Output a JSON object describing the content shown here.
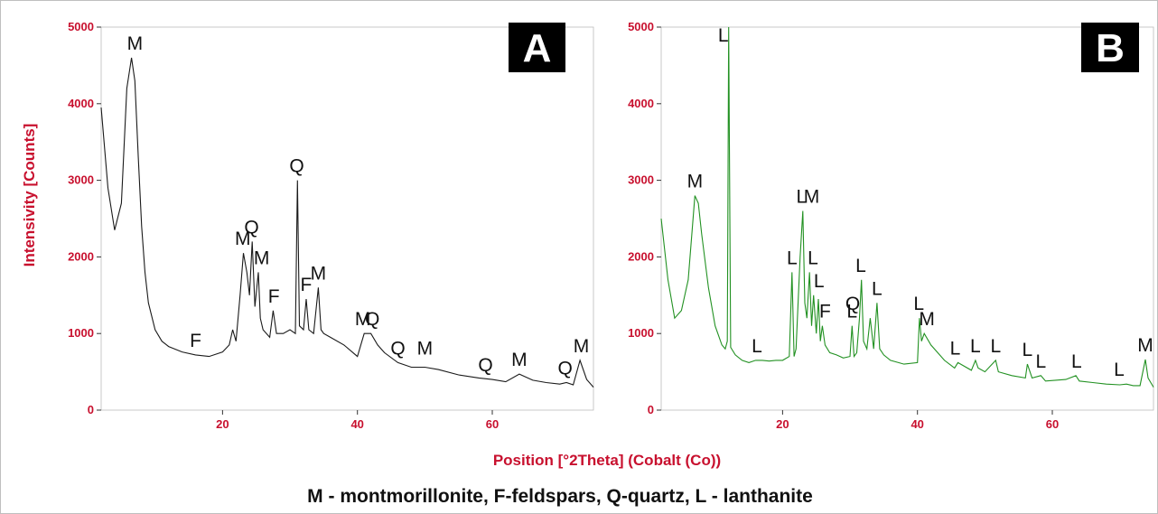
{
  "colors": {
    "axis_text": "#c8102e",
    "series_A": "#1a1a1a",
    "series_B": "#229122",
    "badge_bg": "#000000",
    "frame": "#bfbfbf"
  },
  "figure": {
    "ylabel": "Intensivity [Counts]",
    "xlabel": "Position [°2Theta] (Cobalt (Co))",
    "caption": "M - montmorillonite, F-feldspars, Q-quartz, L - lanthanite"
  },
  "chart_data": [
    {
      "type": "line",
      "panel": "A",
      "xlim": [
        2,
        75
      ],
      "ylim": [
        0,
        5000
      ],
      "xticks": [
        20,
        40,
        60
      ],
      "yticks": [
        0,
        1000,
        2000,
        3000,
        4000,
        5000
      ],
      "series": [
        {
          "x": [
            2,
            3,
            4,
            5,
            5.8,
            6.5,
            7,
            7.5,
            8,
            8.5,
            9,
            10,
            11,
            12,
            14,
            16,
            18,
            20,
            21,
            21.5,
            22,
            22.6,
            23.1,
            23.6,
            24,
            24.4,
            24.8,
            25.3,
            25.6,
            26,
            27,
            27.5,
            28,
            29,
            30,
            30.8,
            31.1,
            31.4,
            32,
            32.4,
            32.8,
            33.5,
            34.2,
            34.6,
            35,
            36,
            38,
            40,
            41,
            42,
            43,
            44,
            46,
            48,
            50,
            52,
            55,
            58,
            60,
            62,
            64,
            66,
            68,
            70,
            71,
            72,
            73,
            74,
            75
          ],
          "y": [
            3950,
            2900,
            2350,
            2700,
            4200,
            4600,
            4300,
            3300,
            2400,
            1800,
            1400,
            1050,
            900,
            830,
            760,
            720,
            700,
            760,
            850,
            1050,
            900,
            1500,
            2050,
            1800,
            1500,
            2200,
            1350,
            1800,
            1200,
            1050,
            950,
            1300,
            1000,
            1000,
            1050,
            1000,
            3000,
            1100,
            1050,
            1450,
            1050,
            1000,
            1600,
            1050,
            1000,
            950,
            850,
            700,
            1000,
            1000,
            850,
            750,
            620,
            560,
            560,
            530,
            460,
            420,
            400,
            370,
            470,
            390,
            360,
            340,
            360,
            330,
            650,
            400,
            300
          ]
        }
      ],
      "annotations": [
        {
          "label": "M",
          "x": 7,
          "y": 4600
        },
        {
          "label": "F",
          "x": 16,
          "y": 720
        },
        {
          "label": "M",
          "x": 23,
          "y": 2050
        },
        {
          "label": "Q",
          "x": 24.3,
          "y": 2200
        },
        {
          "label": "M",
          "x": 25.8,
          "y": 1800
        },
        {
          "label": "F",
          "x": 27.6,
          "y": 1300
        },
        {
          "label": "Q",
          "x": 31,
          "y": 3000
        },
        {
          "label": "F",
          "x": 32.4,
          "y": 1450
        },
        {
          "label": "M",
          "x": 34.2,
          "y": 1600
        },
        {
          "label": "M",
          "x": 40.8,
          "y": 1000
        },
        {
          "label": "Q",
          "x": 42.2,
          "y": 1000
        },
        {
          "label": "Q",
          "x": 46,
          "y": 620
        },
        {
          "label": "M",
          "x": 50,
          "y": 620
        },
        {
          "label": "Q",
          "x": 59,
          "y": 400
        },
        {
          "label": "M",
          "x": 64,
          "y": 470
        },
        {
          "label": "Q",
          "x": 70.8,
          "y": 360
        },
        {
          "label": "M",
          "x": 73.2,
          "y": 650
        }
      ]
    },
    {
      "type": "line",
      "panel": "B",
      "xlim": [
        2,
        75
      ],
      "ylim": [
        0,
        5000
      ],
      "xticks": [
        20,
        40,
        60
      ],
      "yticks": [
        0,
        1000,
        2000,
        3000,
        4000,
        5000
      ],
      "series": [
        {
          "x": [
            2,
            3,
            4,
            5,
            6,
            7,
            7.5,
            8,
            9,
            10,
            11,
            11.5,
            11.8,
            12,
            12.3,
            13,
            14,
            15,
            16,
            17,
            18,
            19,
            20,
            21,
            21.4,
            21.7,
            22,
            22.6,
            23,
            23.3,
            23.6,
            24,
            24.3,
            24.6,
            25,
            25.3,
            25.6,
            25.9,
            26.3,
            27,
            28,
            29,
            30,
            30.3,
            30.6,
            31,
            31.4,
            31.7,
            32,
            32.5,
            33,
            33.5,
            34,
            34.4,
            35,
            36,
            38,
            40,
            40.3,
            40.6,
            41,
            42,
            44,
            45.5,
            46,
            48,
            48.6,
            49,
            50,
            51.6,
            52,
            54,
            56,
            56.3,
            57,
            58.3,
            59,
            62,
            63.5,
            64,
            66,
            68,
            70,
            71,
            72,
            73,
            73.8,
            74.2,
            75
          ],
          "y": [
            2500,
            1700,
            1200,
            1300,
            1700,
            2800,
            2700,
            2300,
            1600,
            1100,
            850,
            800,
            900,
            5000,
            820,
            720,
            650,
            620,
            650,
            650,
            640,
            650,
            650,
            700,
            1800,
            700,
            800,
            2000,
            2600,
            1400,
            1200,
            1800,
            1100,
            1500,
            1000,
            1450,
            900,
            1100,
            850,
            750,
            720,
            680,
            700,
            1100,
            700,
            750,
            1200,
            1700,
            900,
            800,
            1200,
            800,
            1400,
            800,
            720,
            650,
            600,
            620,
            1200,
            900,
            1000,
            850,
            650,
            550,
            620,
            520,
            650,
            550,
            500,
            650,
            500,
            450,
            420,
            600,
            420,
            450,
            380,
            400,
            450,
            380,
            360,
            340,
            330,
            340,
            320,
            320,
            660,
            420,
            300
          ]
        }
      ],
      "annotations": [
        {
          "label": "L",
          "x": 11.2,
          "y": 5000
        },
        {
          "label": "M",
          "x": 7,
          "y": 2800
        },
        {
          "label": "L",
          "x": 16.2,
          "y": 650
        },
        {
          "label": "L",
          "x": 21.4,
          "y": 1800
        },
        {
          "label": "L",
          "x": 22.8,
          "y": 2600
        },
        {
          "label": "M",
          "x": 24.3,
          "y": 2600
        },
        {
          "label": "L",
          "x": 24.5,
          "y": 1800
        },
        {
          "label": "L",
          "x": 25.4,
          "y": 1500
        },
        {
          "label": "F",
          "x": 26.3,
          "y": 1100
        },
        {
          "label": "Q",
          "x": 30.4,
          "y": 1200
        },
        {
          "label": "L",
          "x": 30.3,
          "y": 1100
        },
        {
          "label": "L",
          "x": 31.6,
          "y": 1700
        },
        {
          "label": "L",
          "x": 34,
          "y": 1400
        },
        {
          "label": "L",
          "x": 40.2,
          "y": 1200
        },
        {
          "label": "M",
          "x": 41.4,
          "y": 1000
        },
        {
          "label": "L",
          "x": 45.6,
          "y": 620
        },
        {
          "label": "L",
          "x": 48.6,
          "y": 650
        },
        {
          "label": "L",
          "x": 51.6,
          "y": 650
        },
        {
          "label": "L",
          "x": 56.3,
          "y": 600
        },
        {
          "label": "L",
          "x": 58.3,
          "y": 450
        },
        {
          "label": "L",
          "x": 63.6,
          "y": 450
        },
        {
          "label": "L",
          "x": 69.9,
          "y": 340
        },
        {
          "label": "M",
          "x": 73.8,
          "y": 660
        }
      ]
    }
  ]
}
